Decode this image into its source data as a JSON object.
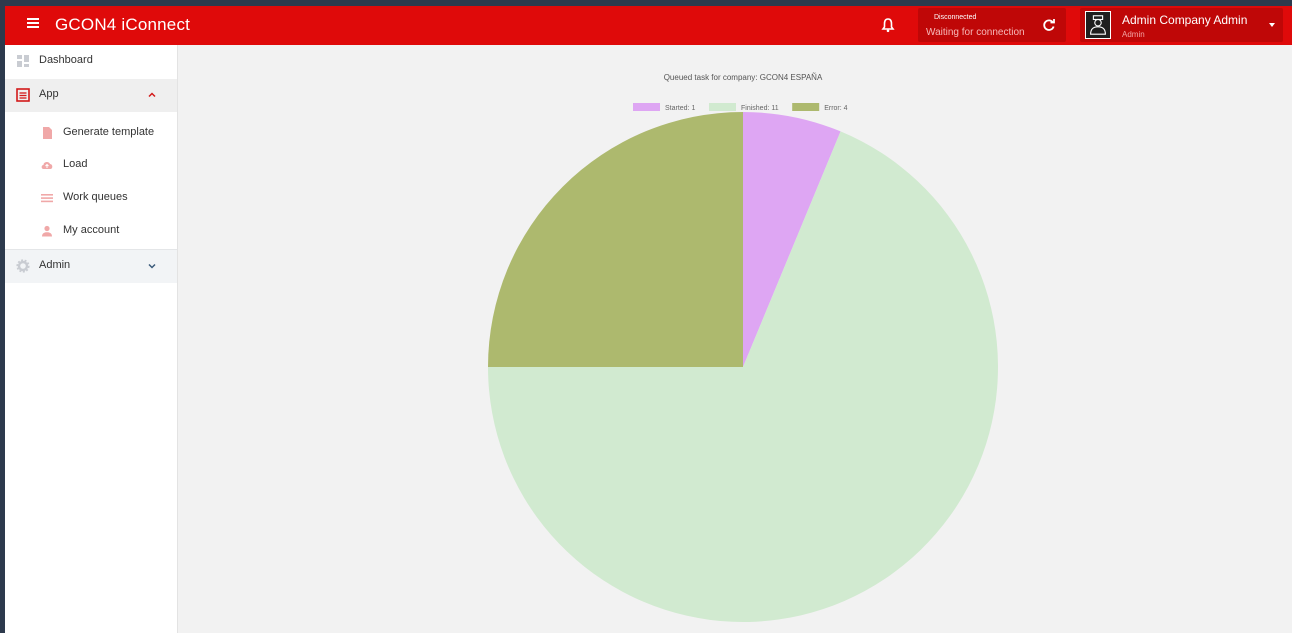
{
  "header": {
    "brand": "GCON4 iConnect",
    "connection_status": "Disconnected",
    "connection_wait": "Waiting for connection",
    "user_name": "Admin Company Admin",
    "user_role": "Admin",
    "bar_color": "#df0a0a"
  },
  "sidebar": {
    "items": [
      {
        "label": "Dashboard",
        "icon": "dashboard-icon"
      },
      {
        "label": "App",
        "icon": "app-list-icon"
      },
      {
        "label": "Generate template",
        "icon": "document-icon"
      },
      {
        "label": "Load",
        "icon": "cloud-upload-icon"
      },
      {
        "label": "Work queues",
        "icon": "queue-list-icon"
      },
      {
        "label": "My account",
        "icon": "user-icon"
      },
      {
        "label": "Admin",
        "icon": "gear-icon"
      }
    ]
  },
  "chart_data": {
    "type": "pie",
    "title": "Queued task for company: GCON4 ESPAÑA",
    "legend_position": "top",
    "categories": [
      "Started",
      "Finished",
      "Error"
    ],
    "values": [
      1,
      11,
      4
    ],
    "legend_labels": [
      "Started: 1",
      "Finished: 11",
      "Error: 4"
    ],
    "colors": [
      "#dea6f3",
      "#d1ead0",
      "#adb96e"
    ]
  }
}
